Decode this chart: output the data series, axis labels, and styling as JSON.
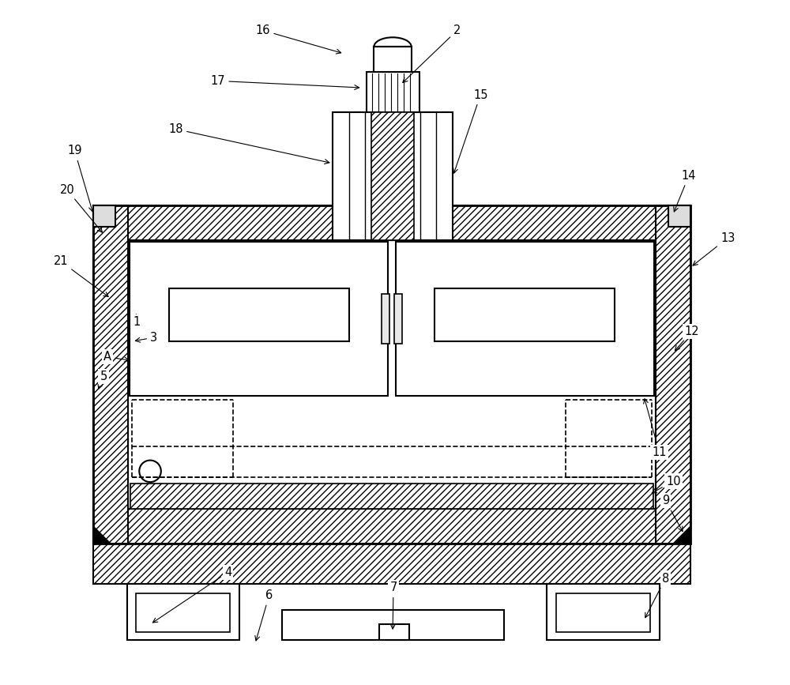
{
  "bg_color": "#ffffff",
  "line_color": "#000000",
  "label_color": "#000000",
  "fig_width": 10.0,
  "fig_height": 8.67
}
